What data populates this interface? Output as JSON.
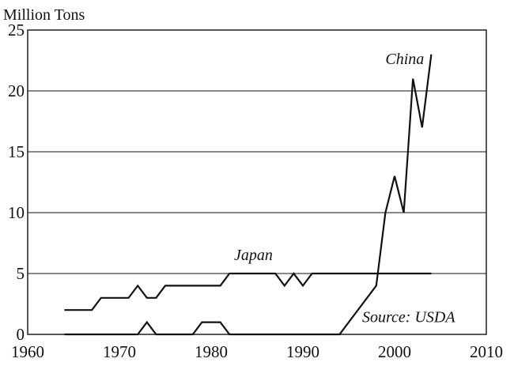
{
  "chart_data": {
    "type": "line",
    "title": "",
    "xlabel": "",
    "ylabel": "Million Tons",
    "xlim": [
      1960,
      2010
    ],
    "ylim": [
      0,
      25
    ],
    "x_ticks": [
      1960,
      1970,
      1980,
      1990,
      2000,
      2010
    ],
    "y_ticks": [
      0,
      5,
      10,
      15,
      20,
      25
    ],
    "grid": "horizontal",
    "series": [
      {
        "name": "Japan",
        "x": [
          1964,
          1967,
          1968,
          1971,
          1972,
          1973,
          1974,
          1975,
          1981,
          1982,
          1987,
          1988,
          1989,
          1990,
          1991,
          2004
        ],
        "values": [
          2,
          2,
          3,
          3,
          4,
          3,
          3,
          4,
          4,
          5,
          5,
          4,
          5,
          4,
          5,
          5
        ]
      },
      {
        "name": "China",
        "x": [
          1964,
          1972,
          1973,
          1974,
          1978,
          1979,
          1981,
          1982,
          1994,
          1998,
          1999,
          2000,
          2001,
          2002,
          2003,
          2004
        ],
        "values": [
          0,
          0,
          1,
          0,
          0,
          1,
          1,
          0,
          0,
          4,
          10,
          13,
          10,
          21,
          17,
          23
        ]
      }
    ],
    "annotations": {
      "china": "China",
      "japan": "Japan",
      "source": "Source: USDA"
    }
  }
}
